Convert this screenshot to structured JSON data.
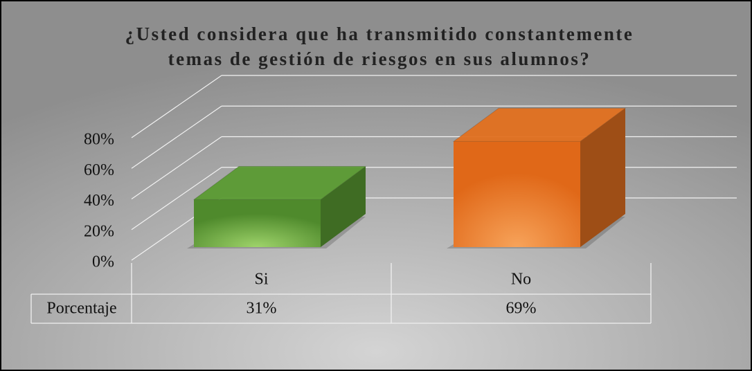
{
  "chart_data": {
    "type": "bar",
    "title": "¿Usted considera que ha transmitido constantemente",
    "subtitle": "temas de gestión de riesgos en sus alumnos?",
    "categories": [
      "Si",
      "No"
    ],
    "series": [
      {
        "name": "Porcentaje",
        "values": [
          31,
          69
        ],
        "value_labels": [
          "31%",
          "69%"
        ],
        "colors": [
          "#5a9a32",
          "#e2701f"
        ]
      }
    ],
    "ylim": [
      0,
      80
    ],
    "yticks": [
      {
        "value": 0,
        "label": "0%"
      },
      {
        "value": 20,
        "label": "20%"
      },
      {
        "value": 40,
        "label": "40%"
      },
      {
        "value": 60,
        "label": "60%"
      },
      {
        "value": 80,
        "label": "80%"
      }
    ],
    "grid": true
  }
}
